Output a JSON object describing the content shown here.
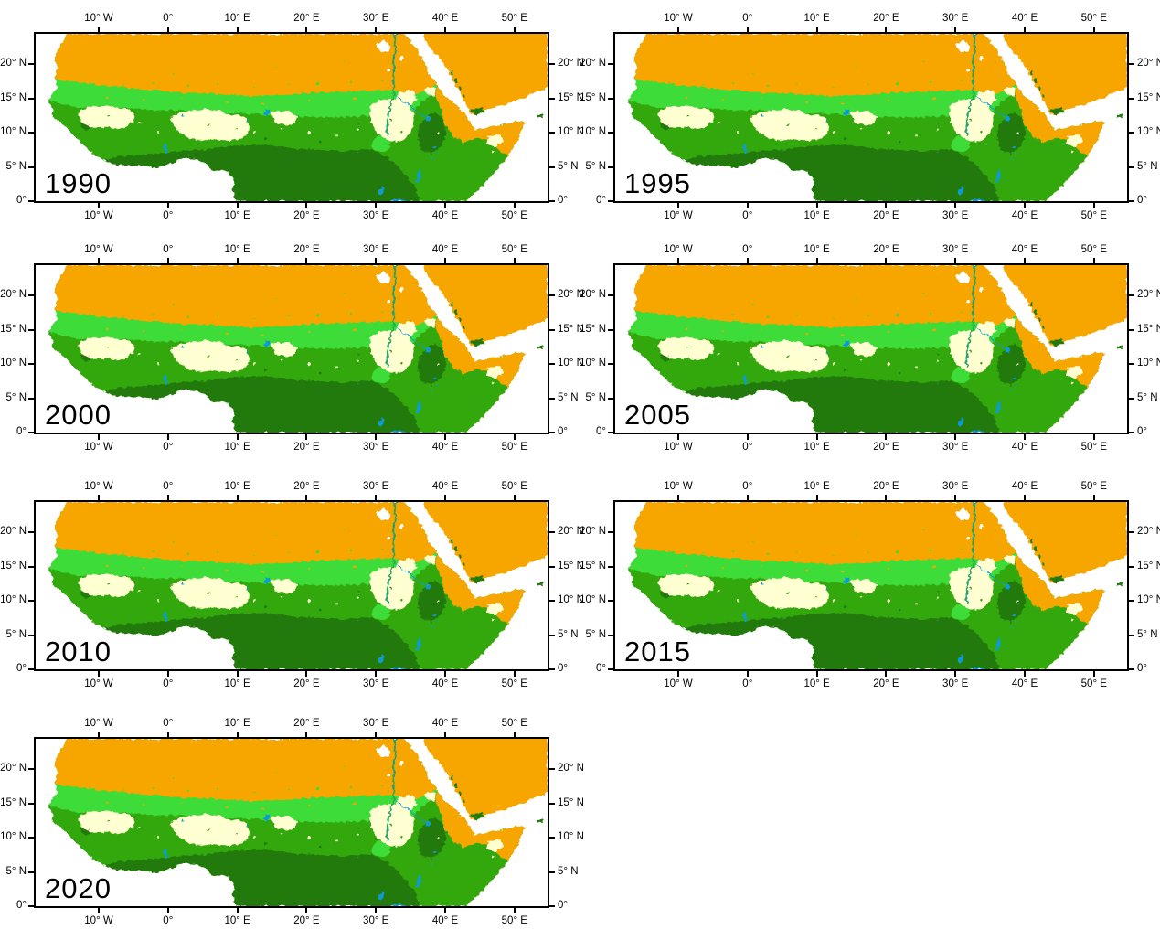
{
  "figure": {
    "panels": [
      {
        "year": "1990"
      },
      {
        "year": "1995"
      },
      {
        "year": "2000"
      },
      {
        "year": "2005"
      },
      {
        "year": "2010"
      },
      {
        "year": "2015"
      },
      {
        "year": "2020"
      }
    ],
    "axes": {
      "lon_ticks": [
        "10° W",
        "0°",
        "10° E",
        "20° E",
        "30° E",
        "40° E",
        "50° E"
      ],
      "lat_ticks": [
        "20° N",
        "15° N",
        "10° N",
        "5° N",
        "0°"
      ]
    },
    "colors": {
      "desert": "#F7A600",
      "grassland": "#3EDC38",
      "savanna": "#32A80C",
      "forest": "#217A08",
      "sparse": "#FFFFD2",
      "water": "#0F9BD7",
      "ocean": "#FFFFFF"
    }
  }
}
